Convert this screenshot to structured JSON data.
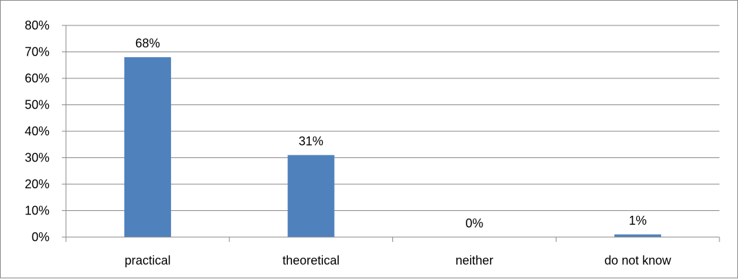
{
  "chart_data": {
    "type": "bar",
    "categories": [
      "practical",
      "theoretical",
      "neither",
      "do not know"
    ],
    "values": [
      68,
      31,
      0,
      1
    ],
    "data_labels": [
      "68%",
      "31%",
      "0%",
      "1%"
    ],
    "ylim": [
      0,
      80
    ],
    "y_ticks": [
      0,
      10,
      20,
      30,
      40,
      50,
      60,
      70,
      80
    ],
    "y_tick_labels": [
      "0%",
      "10%",
      "20%",
      "30%",
      "40%",
      "50%",
      "60%",
      "70%",
      "80%"
    ],
    "grid": true,
    "legend": "none",
    "bar_color": "#4f81bd",
    "grid_color": "#868686"
  }
}
